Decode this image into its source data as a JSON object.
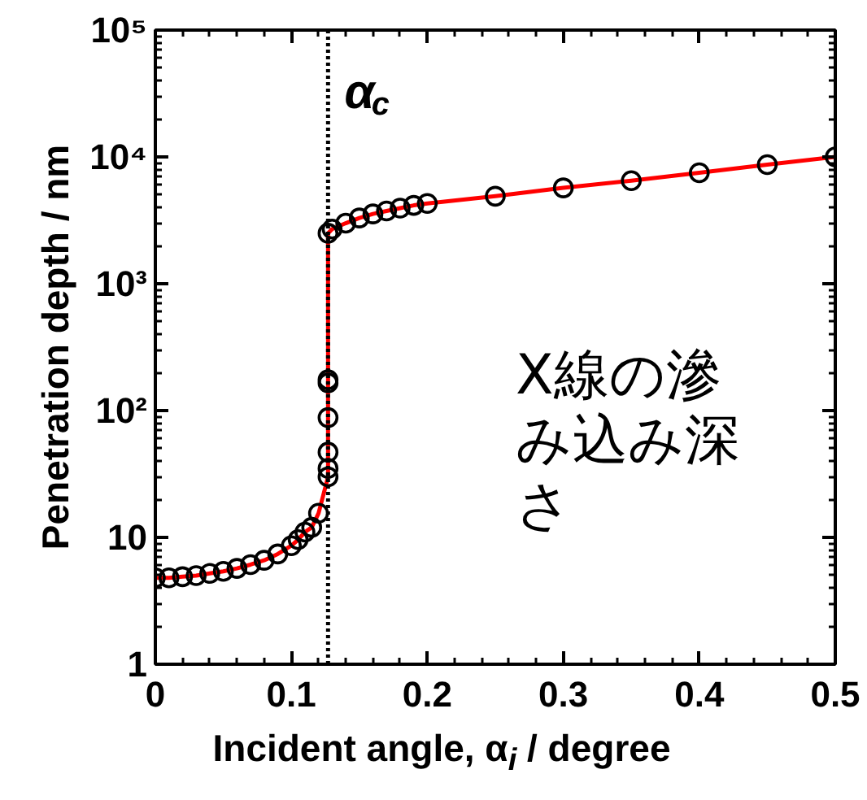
{
  "chart_data": {
    "type": "scatter",
    "xlabel": "Incident angle, α$_{i}$ / degree",
    "ylabel": "Penetration depth / nm",
    "x": [
      0,
      0.01,
      0.02,
      0.03,
      0.04,
      0.05,
      0.06,
      0.07,
      0.08,
      0.09,
      0.1,
      0.105,
      0.11,
      0.115,
      0.12,
      0.127,
      0.127,
      0.127,
      0.127,
      0.127,
      0.127,
      0.127,
      0.13,
      0.14,
      0.15,
      0.16,
      0.17,
      0.18,
      0.19,
      0.2,
      0.25,
      0.3,
      0.35,
      0.4,
      0.45,
      0.5
    ],
    "series": [
      {
        "type": "scatter",
        "color": "#000000",
        "marker": "circle",
        "values": [
          4.8,
          4.8,
          4.9,
          5.0,
          5.2,
          5.4,
          5.7,
          6.1,
          6.6,
          7.4,
          8.6,
          9.6,
          11,
          12,
          15.5,
          30,
          35,
          47,
          88,
          165,
          175,
          2500,
          2700,
          3000,
          3300,
          3550,
          3750,
          3950,
          4150,
          4300,
          4900,
          5700,
          6500,
          7500,
          8700,
          10000
        ]
      },
      {
        "type": "line",
        "color": "#ff0000",
        "line_style": "solid",
        "values": [
          4.8,
          4.8,
          4.9,
          5.0,
          5.2,
          5.4,
          5.7,
          6.1,
          6.6,
          7.4,
          8.6,
          9.6,
          11,
          12,
          15.5,
          30,
          35,
          47,
          88,
          165,
          175,
          2500,
          2700,
          3000,
          3300,
          3550,
          3750,
          3950,
          4150,
          4300,
          4900,
          5700,
          6500,
          7500,
          8700,
          10000
        ]
      }
    ],
    "log": "y",
    "xlim": [
      0,
      0.5
    ],
    "ylim": [
      1,
      100000
    ],
    "xticks": [
      0,
      0.1,
      0.2,
      0.3,
      0.4,
      0.5
    ],
    "yticks": [
      1,
      10,
      {
        "value": 100,
        "label": "10²"
      },
      {
        "value": 1000,
        "label": "10³"
      },
      {
        "value": 10000,
        "label": "10⁴"
      },
      {
        "value": 100000,
        "label": "10⁵"
      }
    ],
    "ref_lines": [
      {
        "axis": "x",
        "value": 0.127,
        "label": "α$_{c}$",
        "color": "#000000",
        "line_style": "dotted"
      }
    ],
    "annotations": [
      "X線の滲み込み深さ"
    ],
    "grid": false
  }
}
